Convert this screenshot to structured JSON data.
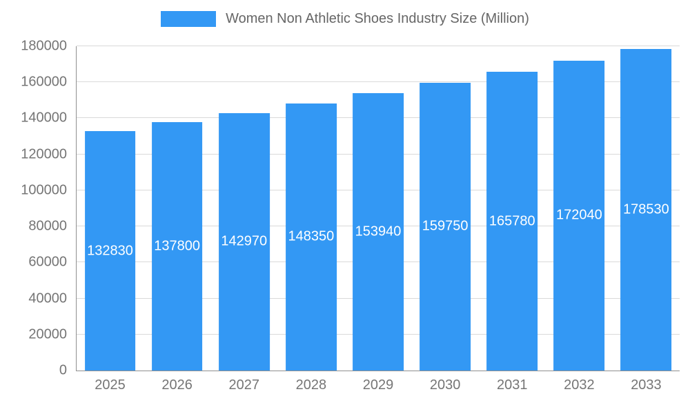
{
  "chart_data": {
    "type": "bar",
    "title": "Women Non Athletic Shoes Industry Size (Million)",
    "categories": [
      "2025",
      "2026",
      "2027",
      "2028",
      "2029",
      "2030",
      "2031",
      "2032",
      "2033"
    ],
    "values": [
      132830,
      137800,
      142970,
      148350,
      153940,
      159750,
      165780,
      172040,
      178530
    ],
    "xlabel": "",
    "ylabel": "",
    "ylim": [
      0,
      180000
    ],
    "ytick_step": 20000,
    "grid": true,
    "legend_position": "top",
    "bar_color": "#3398f4",
    "annotation_color": "#ffffff",
    "axis_text_color": "#757575",
    "title_color": "#666666"
  }
}
